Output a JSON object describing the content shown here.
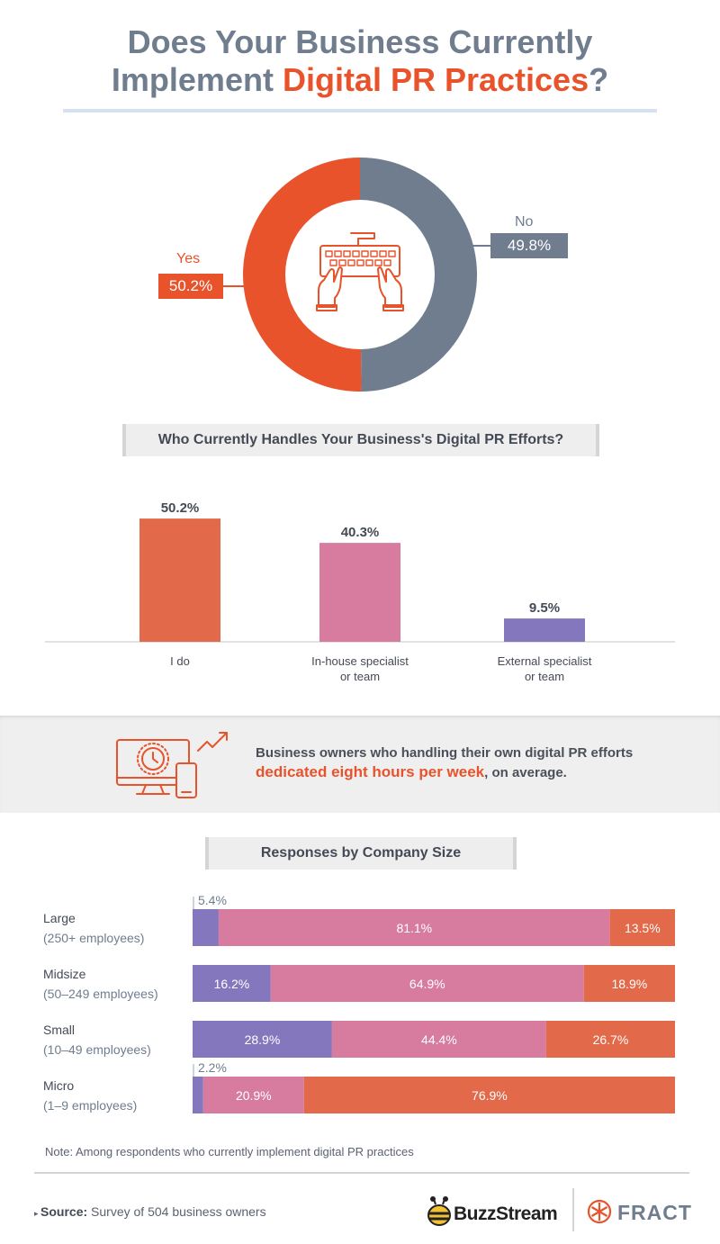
{
  "title": {
    "line1": "Does Your Business Currently",
    "line2_plain": "Implement ",
    "line2_accent": "Digital PR Practices",
    "line2_end": "?"
  },
  "colors": {
    "orange": "#e8532b",
    "slate": "#6f7d8e",
    "bar_orange": "#e2694a",
    "bar_pink": "#d77c9e",
    "bar_purple": "#8577bd"
  },
  "chart_data": [
    {
      "type": "pie",
      "style": "donut",
      "center_icon": "keyboard-hands-icon",
      "slices": [
        {
          "label": "Yes",
          "value": 50.2,
          "display": "50.2%",
          "color": "#e8532b"
        },
        {
          "label": "No",
          "value": 49.8,
          "display": "49.8%",
          "color": "#6f7d8e"
        }
      ]
    },
    {
      "type": "bar",
      "title": "Who Currently Handles Your Business's Digital PR Efforts?",
      "categories": [
        "I do",
        "In-house specialist or team",
        "External specialist or team"
      ],
      "category_lines": [
        [
          "I do"
        ],
        [
          "In-house specialist",
          "or team"
        ],
        [
          "External specialist",
          "or team"
        ]
      ],
      "values": [
        50.2,
        40.3,
        9.5
      ],
      "value_labels": [
        "50.2%",
        "40.3%",
        "9.5%"
      ],
      "colors": [
        "#e2694a",
        "#d77c9e",
        "#8577bd"
      ],
      "ylim": [
        0,
        55
      ]
    },
    {
      "type": "bar",
      "stacked": true,
      "orientation": "horizontal",
      "title": "Responses by Company Size",
      "categories": [
        "Large",
        "Midsize",
        "Small",
        "Micro"
      ],
      "category_subs": [
        "(250+ employees)",
        "(50–249 employees)",
        "(10–49 employees)",
        "(1–9 employees)"
      ],
      "series": [
        {
          "values": [
            5.4,
            16.2,
            28.9,
            2.2
          ],
          "labels": [
            "5.4%",
            "16.2%",
            "28.9%",
            "2.2%"
          ],
          "color": "#8577bd"
        },
        {
          "values": [
            81.1,
            64.9,
            44.4,
            20.9
          ],
          "labels": [
            "81.1%",
            "64.9%",
            "44.4%",
            "20.9%"
          ],
          "color": "#d77c9e"
        },
        {
          "values": [
            13.5,
            18.9,
            26.7,
            76.9
          ],
          "labels": [
            "13.5%",
            "18.9%",
            "26.7%",
            "76.9%"
          ],
          "color": "#e2694a"
        }
      ],
      "xlim": [
        0,
        100
      ]
    }
  ],
  "callout": {
    "icon": "desktop-clock-phone-growth-icon",
    "line1": "Business owners who handling their own digital PR efforts",
    "line2_accent": "dedicated eight hours per week",
    "line2_end": ", on average."
  },
  "footer": {
    "note": "Note: Among respondents who currently implement digital PR practices",
    "source_label": "Source:",
    "source_text": " Survey of 504 business owners",
    "logo1": "BuzzStream",
    "logo2": "FRACTL"
  }
}
